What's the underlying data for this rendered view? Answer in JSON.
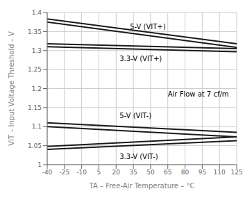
{
  "chart_data": {
    "type": "line",
    "xlabel": "TA – Free-Air Temperature – °C",
    "ylabel": "VIT – Input Voltage Threshold – V",
    "x": [
      -40,
      125
    ],
    "xlim": [
      -40,
      125
    ],
    "ylim": [
      1.0,
      1.4
    ],
    "xticks": [
      -40,
      -25,
      -10,
      5,
      20,
      35,
      50,
      65,
      80,
      95,
      110,
      125
    ],
    "yticks": [
      1.0,
      1.05,
      1.1,
      1.15,
      1.2,
      1.25,
      1.3,
      1.35,
      1.4
    ],
    "grid": true,
    "color": "#1a1a1a",
    "series": [
      {
        "values": [
          1.383,
          1.318
        ]
      },
      {
        "values": [
          1.375,
          1.308
        ]
      },
      {
        "values": [
          1.318,
          1.305
        ]
      },
      {
        "values": [
          1.31,
          1.297
        ]
      },
      {
        "values": [
          1.11,
          1.085
        ]
      },
      {
        "values": [
          1.1,
          1.073
        ]
      },
      {
        "values": [
          1.048,
          1.073
        ]
      },
      {
        "values": [
          1.04,
          1.063
        ]
      }
    ],
    "annotations": [
      {
        "text": "5-V (VIT+)",
        "x": 32,
        "y": 1.362
      },
      {
        "text": "3.3-V (VIT+)",
        "x": 23,
        "y": 1.278
      },
      {
        "text": "5-V (VIT-)",
        "x": 23,
        "y": 1.128
      },
      {
        "text": "3.3-V (VIT-)",
        "x": 23,
        "y": 1.02
      },
      {
        "text": "Air Flow at 7 cf/m",
        "x": 65,
        "y": 1.185
      }
    ]
  }
}
